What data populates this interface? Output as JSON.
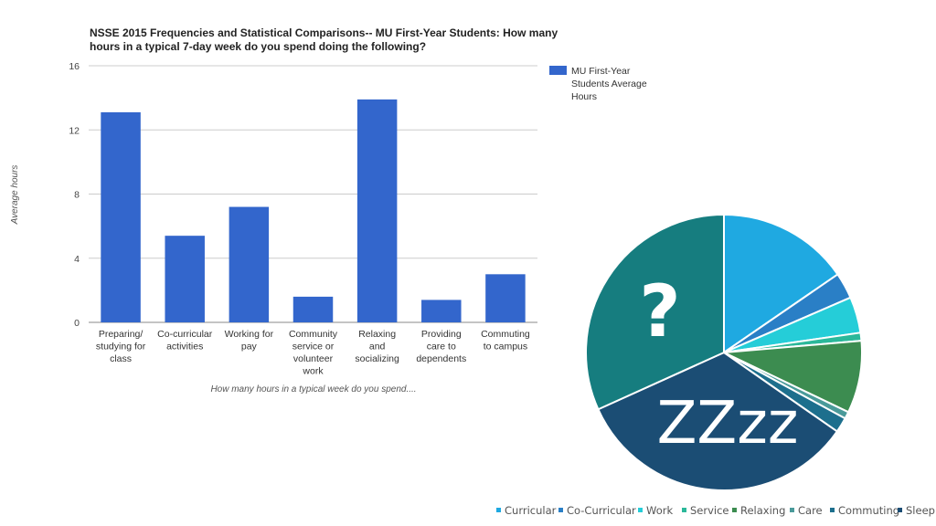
{
  "chart_data": [
    {
      "type": "bar",
      "title": "NSSE 2015 Frequencies and Statistical Comparisons-- MU First-Year Students: How many hours in a typical 7-day week do you spend doing the following?",
      "title_lines": [
        "NSSE 2015 Frequencies and Statistical Comparisons-- MU First-Year Students: How many",
        "hours in a typical 7-day week do you spend doing the following?"
      ],
      "xlabel": "How many hours in a typical week do you spend....",
      "ylabel": "Average hours",
      "ylim": [
        0,
        16
      ],
      "yticks": [
        "0",
        "4",
        "8",
        "12",
        "16"
      ],
      "grid": true,
      "legend_position": "right",
      "color": "#3366cc",
      "categories": [
        "Preparing/ studying for class",
        "Co-curricular activities",
        "Working for pay",
        "Community service or volunteer work",
        "Relaxing and socializing",
        "Providing care to dependents",
        "Commuting to campus"
      ],
      "category_lines": [
        [
          "Preparing/",
          "studying for",
          "class"
        ],
        [
          "Co-curricular",
          "activities"
        ],
        [
          "Working for",
          "pay"
        ],
        [
          "Community",
          "service or",
          "volunteer",
          "work"
        ],
        [
          "Relaxing",
          "and",
          "socializing"
        ],
        [
          "Providing",
          "care to",
          "dependents"
        ],
        [
          "Commuting",
          "to campus"
        ]
      ],
      "series": [
        {
          "name": "MU First-Year Students Average Hours",
          "name_lines": [
            "MU First-Year",
            "Students Average",
            "Hours"
          ],
          "values": [
            13.1,
            5.4,
            7.2,
            1.6,
            13.9,
            1.4,
            3.0
          ]
        }
      ]
    },
    {
      "type": "pie",
      "labels": [
        "Curricular",
        "Co-Curricular",
        "Work",
        "Service",
        "Relaxing",
        "Care",
        "Commuting",
        "Sleep",
        "Unaccounted"
      ],
      "legend_labels": [
        "Curricular",
        "Co-Curricular",
        "Work",
        "Service",
        "Relaxing",
        "Care",
        "Commuting",
        "Sleep"
      ],
      "values": [
        13.1,
        2.6,
        3.6,
        0.8,
        7.2,
        0.7,
        1.5,
        28.5,
        27.0
      ],
      "colors": [
        "#1fa9e1",
        "#2a7fc6",
        "#25cdd8",
        "#2bb89a",
        "#3c8c50",
        "#4a9a9a",
        "#1d6f8d",
        "#1b4d74",
        "#167d7f"
      ],
      "legend_position": "bottom",
      "annotations": {
        "unaccounted": "?",
        "sleep": "ZZzz"
      }
    }
  ]
}
